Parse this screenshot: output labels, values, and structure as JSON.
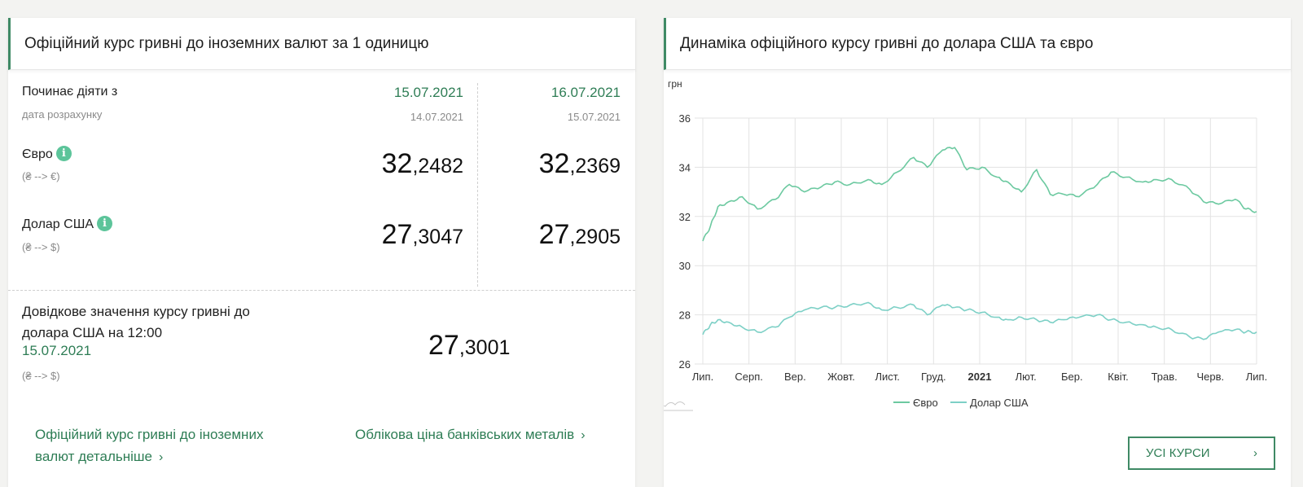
{
  "left": {
    "title": "Офіційний курс гривні до іноземних валют за 1 одиницю",
    "starts_label": "Починає діяти з",
    "calc_label": "дата розрахунку",
    "columns": [
      {
        "date": "15.07.2021",
        "calc_date": "14.07.2021",
        "eur_int": "32",
        "eur_dec": ",2482",
        "usd_int": "27",
        "usd_dec": ",3047"
      },
      {
        "date": "16.07.2021",
        "calc_date": "15.07.2021",
        "eur_int": "32",
        "eur_dec": ",2369",
        "usd_int": "27",
        "usd_dec": ",2905"
      }
    ],
    "eur_label": "Євро",
    "eur_sub": "(₴ --> €)",
    "usd_label": "Долар США",
    "usd_sub": "(₴ --> $)",
    "info_glyph": "i",
    "ref_label_line1": "Довідкове значення курсу гривні до",
    "ref_label_line2": "долара США на 12:00",
    "ref_date": "15.07.2021",
    "ref_sub": "(₴ --> $)",
    "ref_int": "27",
    "ref_dec": ",3001",
    "link1_line1": "Офіційний курс гривні до іноземних",
    "link1_line2": "валют детальніше",
    "link2": "Облікова ціна банківських металів",
    "chevron": "›"
  },
  "right": {
    "title": "Динаміка офіційного курсу гривні до долара США та євро",
    "button_label": "УСІ КУРСИ",
    "button_chevron": "›"
  },
  "chart_data": {
    "type": "line",
    "ylabel": "грн",
    "ylim": [
      26,
      36
    ],
    "yticks": [
      26,
      28,
      30,
      32,
      34,
      36
    ],
    "x_ticks": [
      "Лип.",
      "Серп.",
      "Вер.",
      "Жовт.",
      "Лист.",
      "Груд.",
      "2021",
      "Лют.",
      "Бер.",
      "Квіт.",
      "Трав.",
      "Черв.",
      "Лип."
    ],
    "x_start": "2020-07-15",
    "x_end": "2021-07-15",
    "series": [
      {
        "name": "Євро",
        "color": "#6cc9a0",
        "x": [
          "2020-07-15",
          "2020-07-20",
          "2020-07-25",
          "2020-08-01",
          "2020-08-10",
          "2020-08-20",
          "2020-09-01",
          "2020-09-10",
          "2020-09-20",
          "2020-10-01",
          "2020-10-10",
          "2020-10-20",
          "2020-11-01",
          "2020-11-10",
          "2020-11-20",
          "2020-12-01",
          "2020-12-10",
          "2020-12-20",
          "2020-12-28",
          "2021-01-05",
          "2021-01-15",
          "2021-01-25",
          "2021-02-01",
          "2021-02-10",
          "2021-02-20",
          "2021-03-01",
          "2021-03-10",
          "2021-03-20",
          "2021-04-01",
          "2021-04-10",
          "2021-04-20",
          "2021-05-01",
          "2021-05-10",
          "2021-05-20",
          "2021-06-01",
          "2021-06-10",
          "2021-06-20",
          "2021-07-01",
          "2021-07-08",
          "2021-07-15"
        ],
        "values": [
          31.0,
          31.6,
          32.4,
          32.6,
          32.8,
          32.3,
          32.7,
          33.3,
          33.0,
          33.2,
          33.4,
          33.3,
          33.5,
          33.3,
          33.8,
          34.4,
          34.0,
          34.7,
          34.8,
          33.9,
          34.0,
          33.6,
          33.4,
          33.0,
          33.9,
          32.9,
          32.9,
          32.8,
          33.3,
          33.8,
          33.6,
          33.4,
          33.5,
          33.5,
          33.1,
          32.6,
          32.5,
          32.7,
          32.3,
          32.2
        ]
      },
      {
        "name": "Долар США",
        "color": "#7dd0c6",
        "x": [
          "2020-07-15",
          "2020-07-20",
          "2020-07-25",
          "2020-08-01",
          "2020-08-10",
          "2020-08-20",
          "2020-09-01",
          "2020-09-10",
          "2020-09-20",
          "2020-10-01",
          "2020-10-10",
          "2020-10-20",
          "2020-11-01",
          "2020-11-10",
          "2020-11-20",
          "2020-12-01",
          "2020-12-10",
          "2020-12-20",
          "2020-12-28",
          "2021-01-05",
          "2021-01-15",
          "2021-01-25",
          "2021-02-01",
          "2021-02-10",
          "2021-02-20",
          "2021-03-01",
          "2021-03-10",
          "2021-03-20",
          "2021-04-01",
          "2021-04-10",
          "2021-04-20",
          "2021-05-01",
          "2021-05-10",
          "2021-05-20",
          "2021-06-01",
          "2021-06-10",
          "2021-06-20",
          "2021-07-01",
          "2021-07-08",
          "2021-07-15"
        ],
        "values": [
          27.2,
          27.6,
          27.8,
          27.7,
          27.5,
          27.3,
          27.5,
          27.9,
          28.2,
          28.3,
          28.3,
          28.4,
          28.5,
          28.2,
          28.3,
          28.4,
          28.0,
          28.4,
          28.3,
          28.2,
          28.1,
          27.9,
          27.8,
          27.9,
          27.8,
          27.7,
          27.8,
          27.9,
          28.0,
          27.8,
          27.7,
          27.6,
          27.5,
          27.4,
          27.1,
          27.0,
          27.3,
          27.4,
          27.3,
          27.3
        ]
      }
    ],
    "legend": "bottom-center",
    "grid": true
  }
}
